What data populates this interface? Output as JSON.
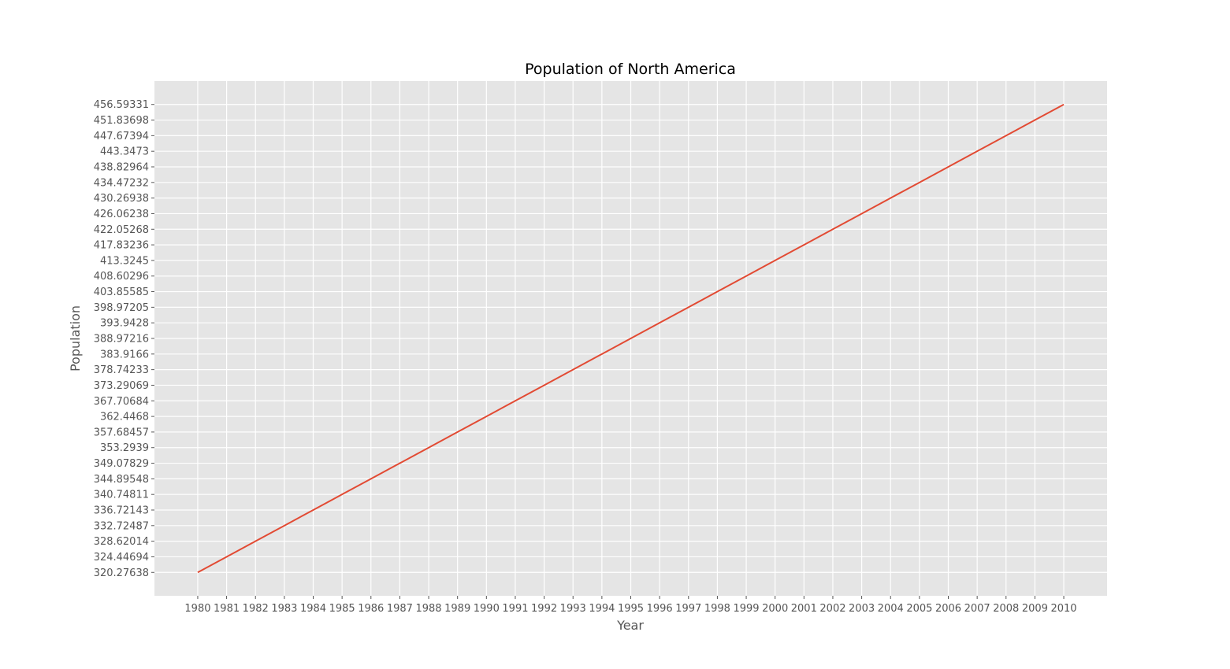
{
  "chart_data": {
    "type": "line",
    "title": "Population of North America",
    "xlabel": "Year",
    "ylabel": "Population",
    "grid": true,
    "x": [
      "1980",
      "1981",
      "1982",
      "1983",
      "1984",
      "1985",
      "1986",
      "1987",
      "1988",
      "1989",
      "1990",
      "1991",
      "1992",
      "1993",
      "1994",
      "1995",
      "1996",
      "1997",
      "1998",
      "1999",
      "2000",
      "2001",
      "2002",
      "2003",
      "2004",
      "2005",
      "2006",
      "2007",
      "2008",
      "2009",
      "2010"
    ],
    "series": [
      {
        "color": "#e24a33",
        "values": [
          "320.27638",
          "324.44694",
          "328.62014",
          "332.72487",
          "336.72143",
          "340.74811",
          "344.89548",
          "349.07829",
          "353.2939",
          "357.68457",
          "362.4468",
          "367.70684",
          "373.29069",
          "378.74233",
          "383.9166",
          "388.97216",
          "393.9428",
          "398.97205",
          "403.85585",
          "408.60296",
          "413.3245",
          "417.83236",
          "422.05268",
          "426.06238",
          "430.26938",
          "434.47232",
          "438.82964",
          "443.3473",
          "447.67394",
          "451.83698",
          "456.59331"
        ]
      }
    ],
    "xlim": [
      1978.5,
      2011.5
    ],
    "ylim": [
      -1.5,
      31.5
    ],
    "legend": "none"
  }
}
